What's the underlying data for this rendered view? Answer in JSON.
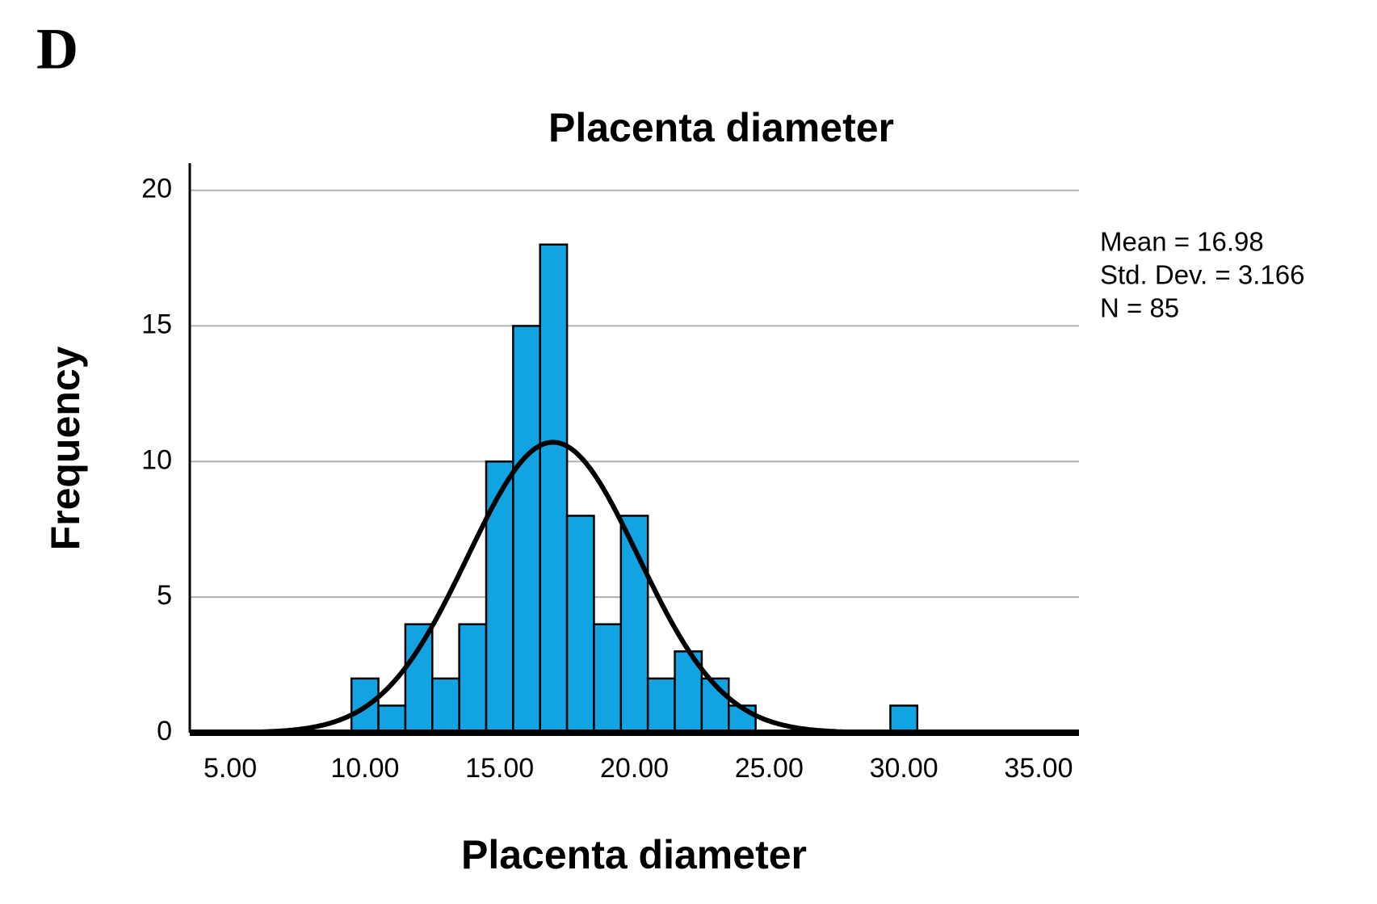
{
  "panel_label": "D",
  "chart_data": {
    "type": "histogram",
    "title": "Placenta diameter",
    "x_label": "Placenta diameter",
    "y_label": "Frequency",
    "bins": [
      9.5,
      10.5,
      11.5,
      12.5,
      13.5,
      14.5,
      15.5,
      16.5,
      17.5,
      18.5,
      19.5,
      20.5,
      21.5,
      22.5,
      23.5,
      24.5,
      25.5,
      26.5,
      27.5,
      28.5,
      29.5,
      30.5
    ],
    "counts": [
      2,
      1,
      4,
      2,
      4,
      10,
      15,
      18,
      8,
      4,
      8,
      2,
      3,
      2,
      1,
      0,
      0,
      0,
      0,
      0,
      1
    ],
    "color": "#12a3e3",
    "xlim": [
      3.5,
      36.5
    ],
    "ylim": [
      0,
      21
    ],
    "xticks": [
      {
        "value": 5,
        "label": "5.00"
      },
      {
        "value": 10,
        "label": "10.00"
      },
      {
        "value": 15,
        "label": "15.00"
      },
      {
        "value": 20,
        "label": "20.00"
      },
      {
        "value": 25,
        "label": "25.00"
      },
      {
        "value": 30,
        "label": "30.00"
      },
      {
        "value": 35,
        "label": "35.00"
      }
    ],
    "yticks": [
      0,
      5,
      10,
      15,
      20
    ],
    "grid": true,
    "stats": [
      {
        "value": 16.98,
        "label": "Mean = 16.98"
      },
      {
        "value": 3.166,
        "label": "Std. Dev. = 3.166"
      },
      {
        "value": 85,
        "label": "N = 85"
      }
    ],
    "curve_color": "#000000"
  }
}
